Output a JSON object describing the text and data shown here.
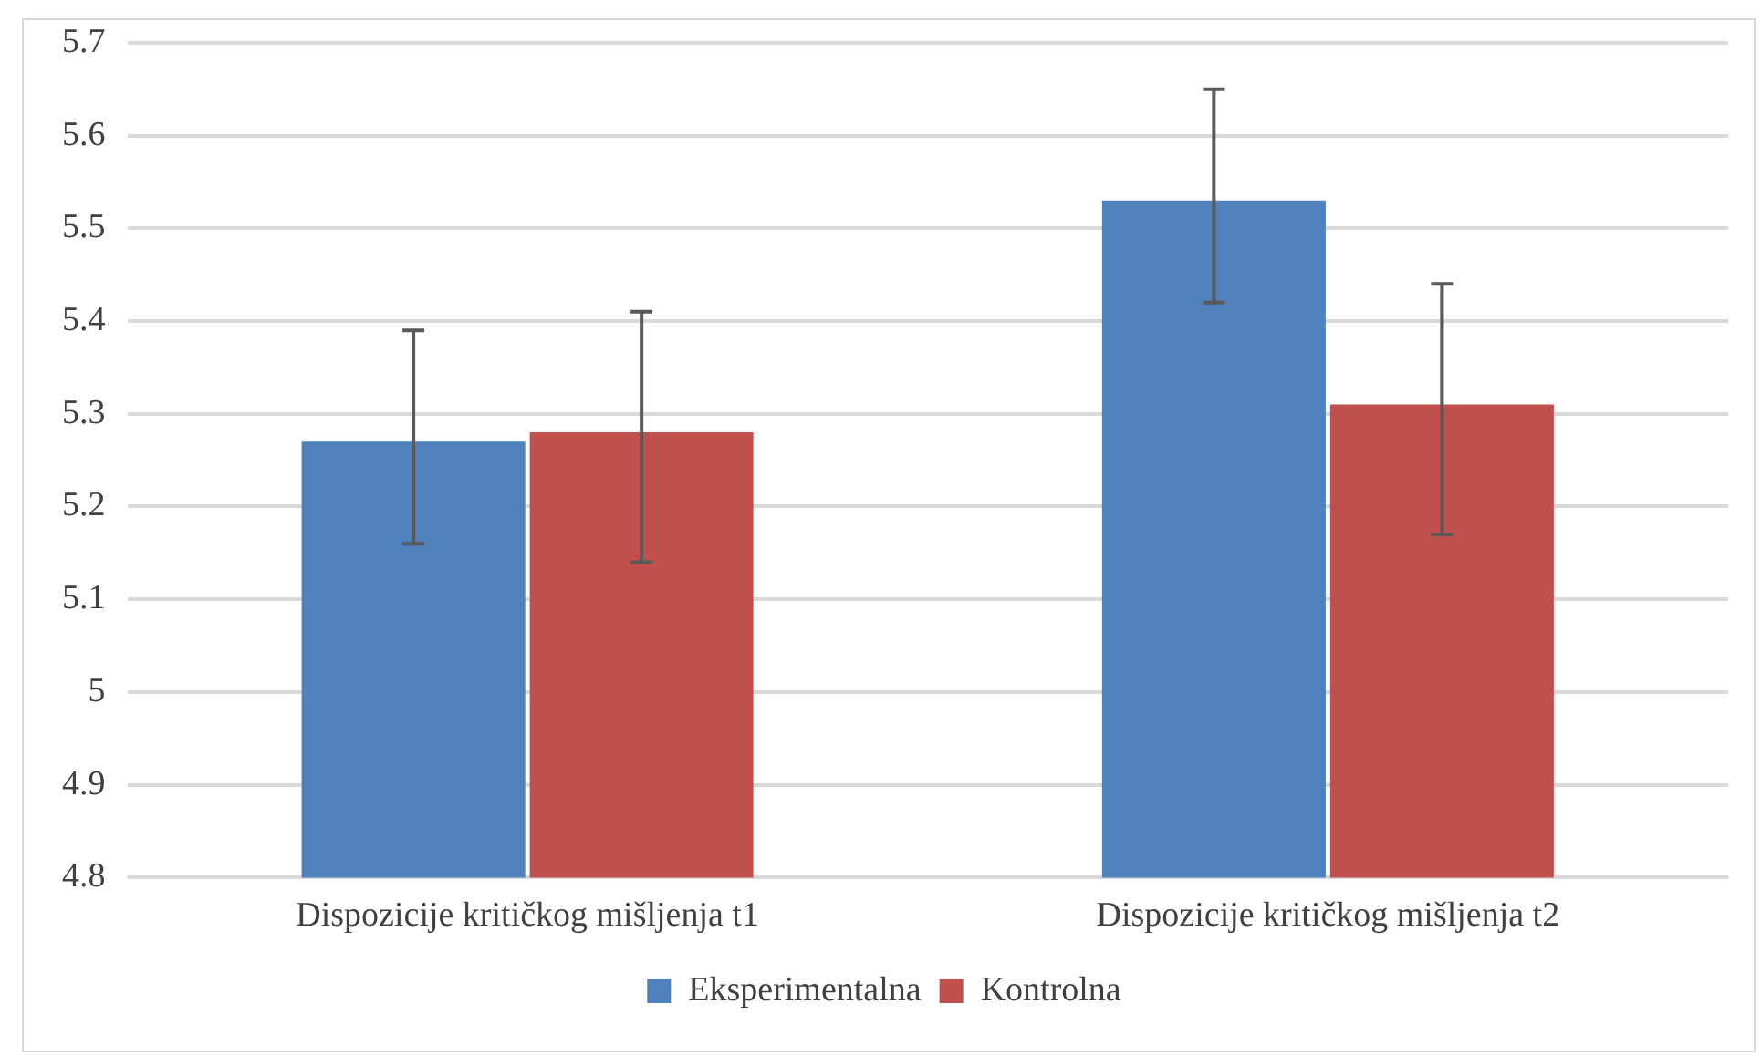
{
  "chart_data": {
    "type": "bar",
    "categories": [
      "Dispozicije kritičkog mišljenja t1",
      "Dispozicije kritičkog mišljenja t2"
    ],
    "series": [
      {
        "name": "Eksperimentalna",
        "color": "#4f81bd",
        "values": [
          5.27,
          5.53
        ],
        "errors": [
          [
            5.16,
            5.39
          ],
          [
            5.42,
            5.65
          ]
        ]
      },
      {
        "name": "Kontrolna",
        "color": "#c0504d",
        "values": [
          5.28,
          5.31
        ],
        "errors": [
          [
            5.14,
            5.41
          ],
          [
            5.17,
            5.44
          ]
        ]
      }
    ],
    "ylim": [
      4.8,
      5.7
    ],
    "yticks": [
      4.8,
      4.9,
      5,
      5.1,
      5.2,
      5.3,
      5.4,
      5.5,
      5.6,
      5.7
    ],
    "grid": "y",
    "legend": "bottom"
  }
}
